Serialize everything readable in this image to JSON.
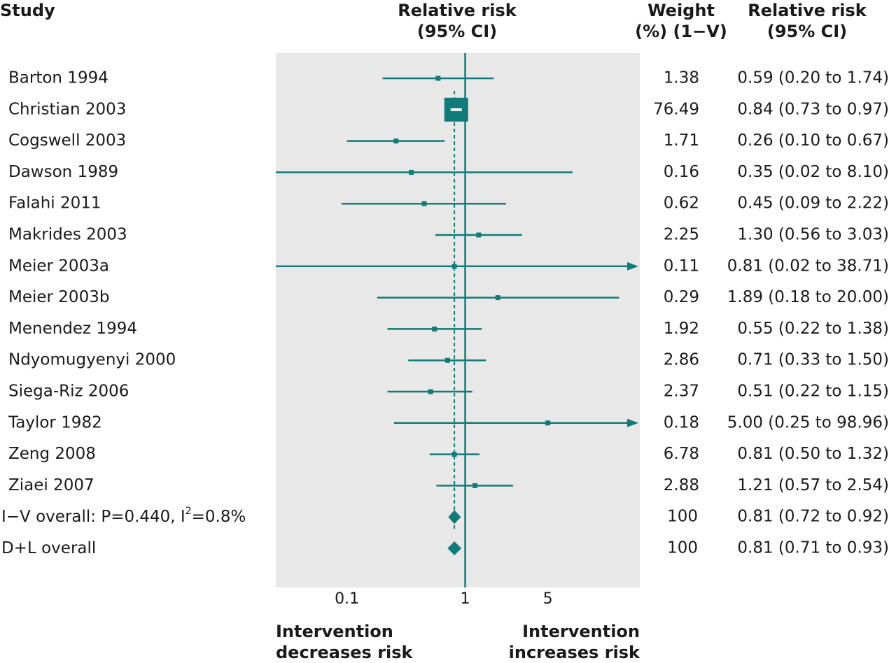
{
  "headers": {
    "study": "Study",
    "rr_line1": "Relative risk",
    "rr_line2": "(95% CI)",
    "weight_line1": "Weight",
    "weight_line2": "(%) (1−V)",
    "rrci_line1": "Relative risk",
    "rrci_line2": "(95% CI)"
  },
  "footer": {
    "left_line1": "Intervention",
    "left_line2": "decreases risk",
    "right_line1": "Intervention",
    "right_line2": "increases risk"
  },
  "colors": {
    "marker": "#117a7a",
    "panel": "#e8e8e8",
    "text": "#1a1a1a"
  },
  "chart_data": {
    "type": "forest",
    "x_scale": "log",
    "xlim": [
      0.025,
      30
    ],
    "x_ticks": [
      {
        "value": 0.1,
        "label": "0.1"
      },
      {
        "value": 1,
        "label": "1"
      },
      {
        "value": 5,
        "label": "5"
      }
    ],
    "null_line": 1,
    "pooled_reference": 0.81,
    "studies": [
      {
        "name": "Barton 1994",
        "rr": 0.59,
        "lo": 0.2,
        "hi": 1.74,
        "weight": "1.38",
        "ci_text": "0.59 (0.20 to 1.74)"
      },
      {
        "name": "Christian 2003",
        "rr": 0.84,
        "lo": 0.73,
        "hi": 0.97,
        "weight": "76.49",
        "ci_text": "0.84 (0.73 to 0.97)"
      },
      {
        "name": "Cogswell 2003",
        "rr": 0.26,
        "lo": 0.1,
        "hi": 0.67,
        "weight": "1.71",
        "ci_text": "0.26 (0.10 to 0.67)"
      },
      {
        "name": "Dawson 1989",
        "rr": 0.35,
        "lo": 0.02,
        "hi": 8.1,
        "weight": "0.16",
        "ci_text": "0.35 (0.02 to 8.10)"
      },
      {
        "name": "Falahi 2011",
        "rr": 0.45,
        "lo": 0.09,
        "hi": 2.22,
        "weight": "0.62",
        "ci_text": "0.45 (0.09 to 2.22)"
      },
      {
        "name": "Makrides 2003",
        "rr": 1.3,
        "lo": 0.56,
        "hi": 3.03,
        "weight": "2.25",
        "ci_text": "1.30 (0.56 to 3.03)"
      },
      {
        "name": "Meier 2003a",
        "rr": 0.81,
        "lo": 0.02,
        "hi": 38.71,
        "weight": "0.11",
        "ci_text": "0.81 (0.02 to  38.71)"
      },
      {
        "name": "Meier 2003b",
        "rr": 1.89,
        "lo": 0.18,
        "hi": 20.0,
        "weight": "0.29",
        "ci_text": "1.89 (0.18 to 20.00)"
      },
      {
        "name": "Menendez 1994",
        "rr": 0.55,
        "lo": 0.22,
        "hi": 1.38,
        "weight": "1.92",
        "ci_text": "0.55 (0.22 to 1.38)"
      },
      {
        "name": "Ndyomugyenyi 2000",
        "rr": 0.71,
        "lo": 0.33,
        "hi": 1.5,
        "weight": "2.86",
        "ci_text": "0.71 (0.33 to 1.50)"
      },
      {
        "name": "Siega-Riz 2006",
        "rr": 0.51,
        "lo": 0.22,
        "hi": 1.15,
        "weight": "2.37",
        "ci_text": "0.51 (0.22 to 1.15)"
      },
      {
        "name": "Taylor 1982",
        "rr": 5.0,
        "lo": 0.25,
        "hi": 98.96,
        "weight": "0.18",
        "ci_text": "5.00 (0.25 to 98.96)"
      },
      {
        "name": "Zeng 2008",
        "rr": 0.81,
        "lo": 0.5,
        "hi": 1.32,
        "weight": "6.78",
        "ci_text": "0.81 (0.50 to 1.32)"
      },
      {
        "name": "Ziaei 2007",
        "rr": 1.21,
        "lo": 0.57,
        "hi": 2.54,
        "weight": "2.88",
        "ci_text": "1.21 (0.57 to 2.54)"
      }
    ],
    "overall": [
      {
        "name": "I−V overall: P=0.440, I",
        "sup": "2",
        "name_tail": "=0.8%",
        "rr": 0.81,
        "lo": 0.72,
        "hi": 0.92,
        "weight": "100",
        "ci_text": "0.81 (0.72 to 0.92)"
      },
      {
        "name": "D+L overall",
        "sup": "",
        "name_tail": "",
        "rr": 0.81,
        "lo": 0.71,
        "hi": 0.93,
        "weight": "100",
        "ci_text": "0.81 (0.71 to 0.93)"
      }
    ]
  }
}
